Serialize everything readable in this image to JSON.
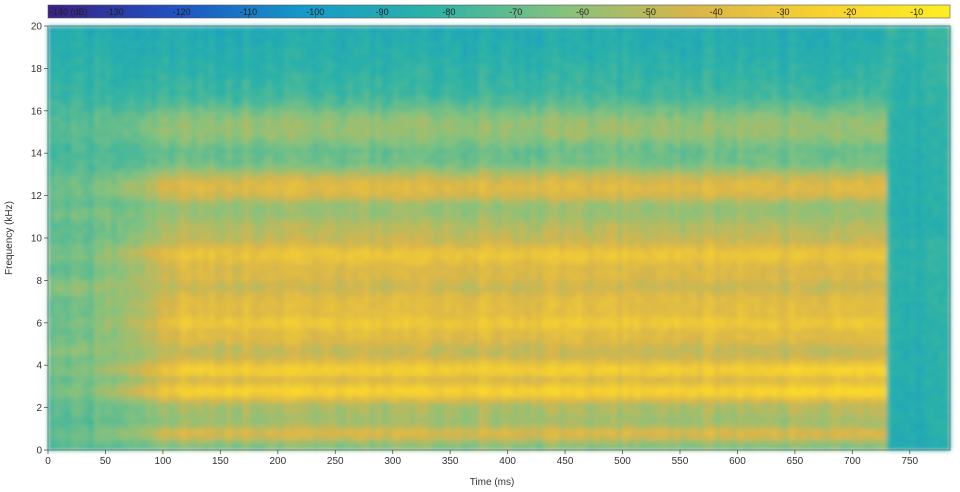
{
  "chart_data": {
    "type": "heatmap",
    "title": "",
    "xlabel": "Time (ms)",
    "ylabel": "Frequency (kHz)",
    "xlim": [
      0,
      785
    ],
    "ylim": [
      0,
      20
    ],
    "x_ticks": [
      0,
      50,
      100,
      150,
      200,
      250,
      300,
      350,
      400,
      450,
      500,
      550,
      600,
      650,
      700,
      750
    ],
    "y_ticks": [
      0,
      2,
      4,
      6,
      8,
      10,
      12,
      14,
      16,
      18,
      20
    ],
    "colorbar": {
      "unit": "(dB)",
      "range": [
        -140,
        -5
      ],
      "ticks": [
        -140,
        -130,
        -120,
        -110,
        -100,
        -90,
        -80,
        -70,
        -60,
        -50,
        -40,
        -30,
        -20,
        -10
      ],
      "first_label": "-140 (dB)",
      "tick_labels": [
        "-130",
        "-120",
        "-110",
        "-100",
        "-90",
        "-80",
        "-70",
        "-60",
        "-50",
        "-40",
        "-30",
        "-20",
        "-10"
      ],
      "colors": [
        "#3b1f86",
        "#1f53c2",
        "#149bc8",
        "#2eb3a6",
        "#85c27e",
        "#d9b54a",
        "#f7d22f",
        "#ffee22"
      ]
    },
    "sound_onset_ms": 0,
    "sound_offset_ms": 730,
    "peak_level_db": -20,
    "bands": [
      {
        "freq_khz": 0.8,
        "level_db": -42
      },
      {
        "freq_khz": 2.8,
        "level_db": -24
      },
      {
        "freq_khz": 3.8,
        "level_db": -26
      },
      {
        "freq_khz": 6.0,
        "level_db": -30
      },
      {
        "freq_khz": 9.2,
        "level_db": -32
      },
      {
        "freq_khz": 12.4,
        "level_db": -40
      },
      {
        "freq_khz": 15.2,
        "level_db": -58
      }
    ],
    "dips": [
      {
        "freq_khz": 4.7,
        "level_db": -56
      },
      {
        "freq_khz": 7.7,
        "level_db": -54
      },
      {
        "freq_khz": 11.2,
        "level_db": -62
      }
    ],
    "background_level_db": -80,
    "silence_level_db": -88
  }
}
